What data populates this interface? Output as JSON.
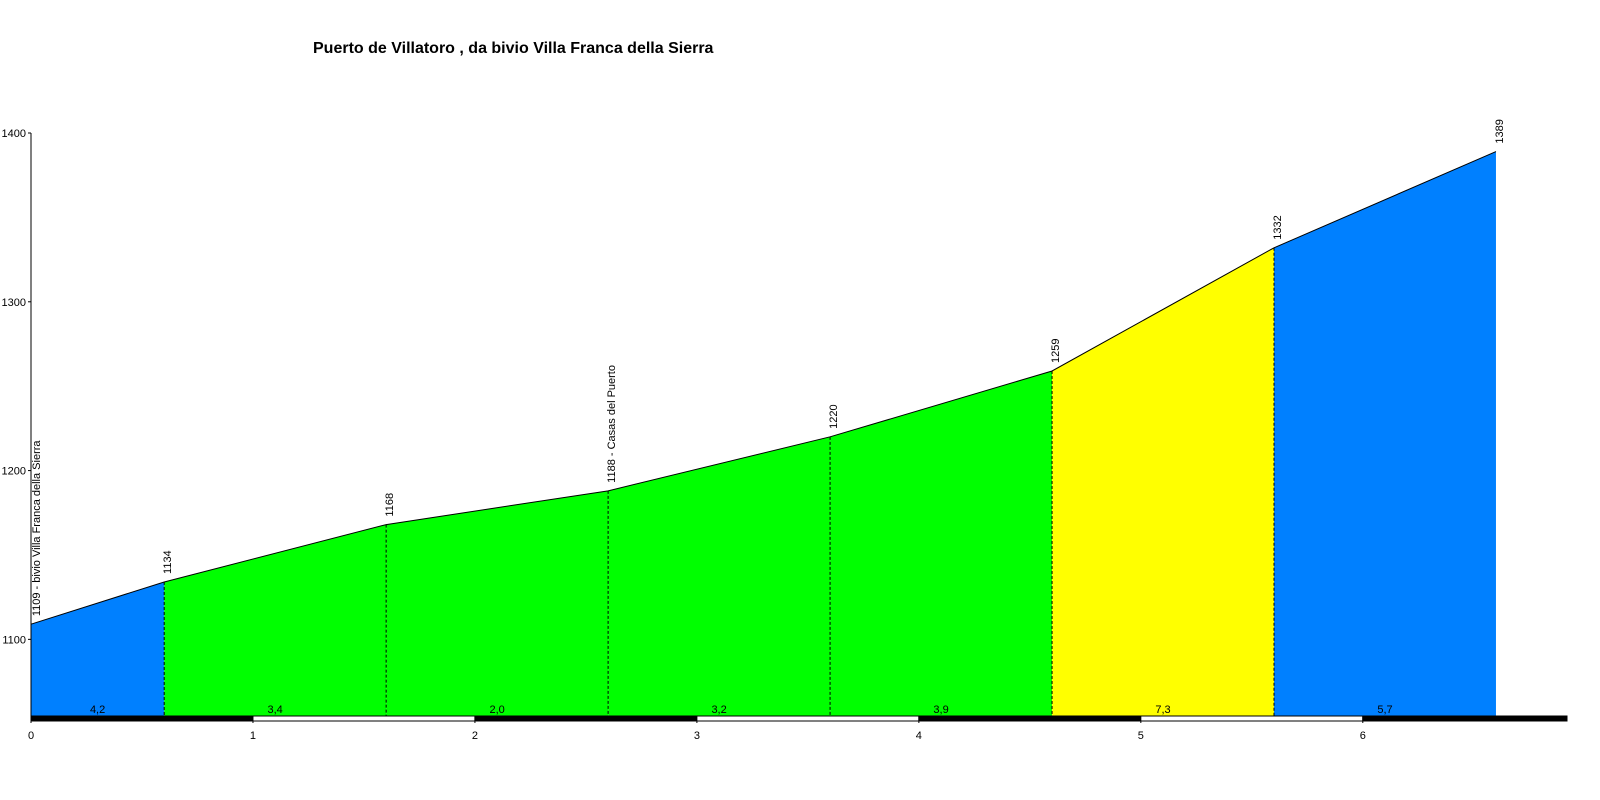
{
  "chart_data": {
    "type": "climb-profile",
    "title": "Puerto de Villatoro , da bivio Villa Franca della Sierra",
    "x": [
      0,
      0.6,
      1.6,
      2.6,
      3.6,
      4.6,
      5.6,
      6.6
    ],
    "values": [
      1109,
      1134,
      1168,
      1188,
      1220,
      1259,
      1332,
      1389
    ],
    "value_labels": [
      "1109 - bivio Villa Franca della Sierra",
      "1134",
      "1168",
      "1188 - Casas del Puerto",
      "1220",
      "1259",
      "1332",
      "1389"
    ],
    "segment_labels": [
      "4,2",
      "3,4",
      "2,0",
      "3,2",
      "3,9",
      "7,3",
      "5,7"
    ],
    "segment_colors": [
      "#0080ff",
      "#00ff00",
      "#00ff00",
      "#00ff00",
      "#00ff00",
      "#ffff00",
      "#0080ff"
    ],
    "xlim": [
      0,
      6.92
    ],
    "xticks": [
      0,
      1,
      2,
      3,
      4,
      5,
      6
    ],
    "ylim": [
      1054,
      1400
    ],
    "yticks": [
      1100,
      1200,
      1300,
      1400
    ]
  }
}
